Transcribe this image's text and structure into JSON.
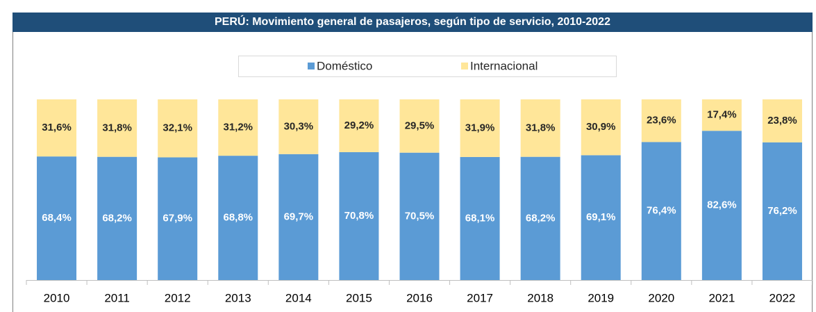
{
  "chart_data": {
    "type": "stacked_bar",
    "title": "PERÚ: Movimiento general de pasajeros, según tipo de servicio, 2010-2022",
    "categories": [
      "2010",
      "2011",
      "2012",
      "2013",
      "2014",
      "2015",
      "2016",
      "2017",
      "2018",
      "2019",
      "2020",
      "2021",
      "2022"
    ],
    "series": [
      {
        "name": "Doméstico",
        "color": "#5b9bd5",
        "values": [
          68.4,
          68.2,
          67.9,
          68.8,
          69.7,
          70.8,
          70.5,
          68.1,
          68.2,
          69.1,
          76.4,
          82.6,
          76.2
        ],
        "value_labels": [
          "68,4%",
          "68,2%",
          "67,9%",
          "68,8%",
          "69,7%",
          "70,8%",
          "70,5%",
          "68,1%",
          "68,2%",
          "69,1%",
          "76,4%",
          "82,6%",
          "76,2%"
        ]
      },
      {
        "name": "Internacional",
        "color": "#ffe699",
        "values": [
          31.6,
          31.8,
          32.1,
          31.2,
          30.3,
          29.2,
          29.5,
          31.9,
          31.8,
          30.9,
          23.6,
          17.4,
          23.8
        ],
        "value_labels": [
          "31,6%",
          "31,8%",
          "32,1%",
          "31,2%",
          "30,3%",
          "29,2%",
          "29,5%",
          "31,9%",
          "31,8%",
          "30,9%",
          "23,6%",
          "17,4%",
          "23,8%"
        ]
      }
    ],
    "ylim": [
      0,
      100
    ],
    "legend": "top"
  }
}
